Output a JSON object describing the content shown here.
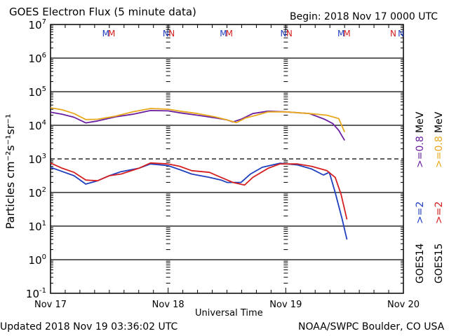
{
  "header": {
    "title": "GOES Electron Flux (5 minute data)",
    "begin": "Begin: 2018 Nov 17 0000 UTC"
  },
  "footer": {
    "updated": "Updated 2018 Nov 19 03:36:02 UTC",
    "credit": "NOAA/SWPC Boulder, CO USA"
  },
  "chart_data": {
    "type": "line",
    "title": "GOES Electron Flux (5 minute data)",
    "xlabel": "Universal Time",
    "ylabel": "Particles cm⁻²s⁻¹sr⁻¹",
    "yscale": "log",
    "ylim_exp": [
      -1,
      7
    ],
    "xlim_days": [
      0,
      3
    ],
    "x_ticks": [
      "Nov 17",
      "Nov 18",
      "Nov 19",
      "Nov 20"
    ],
    "y_ticks": [
      {
        "base": "10",
        "exp": "7"
      },
      {
        "base": "10",
        "exp": "6"
      },
      {
        "base": "10",
        "exp": "5"
      },
      {
        "base": "10",
        "exp": "4"
      },
      {
        "base": "10",
        "exp": "3"
      },
      {
        "base": "10",
        "exp": "2"
      },
      {
        "base": "10",
        "exp": "1"
      },
      {
        "base": "10",
        "exp": "0"
      },
      {
        "base": "10",
        "exp": "-1"
      }
    ],
    "threshold_exp": 3,
    "markers": [
      {
        "day": 0.47,
        "label": "M",
        "color": "#1f3fbf"
      },
      {
        "day": 0.52,
        "label": "M",
        "color": "#d42020"
      },
      {
        "day": 0.98,
        "label": "N",
        "color": "#1f3fbf"
      },
      {
        "day": 1.03,
        "label": "N",
        "color": "#d42020"
      },
      {
        "day": 1.47,
        "label": "M",
        "color": "#1f3fbf"
      },
      {
        "day": 1.52,
        "label": "M",
        "color": "#d42020"
      },
      {
        "day": 1.98,
        "label": "N",
        "color": "#1f3fbf"
      },
      {
        "day": 2.03,
        "label": "N",
        "color": "#d42020"
      },
      {
        "day": 2.47,
        "label": "M",
        "color": "#1f3fbf"
      },
      {
        "day": 2.52,
        "label": "M",
        "color": "#d42020"
      },
      {
        "day": 2.98,
        "label": "N",
        "color": "#1f3fbf"
      },
      {
        "day": 3.03,
        "label": "N",
        "color": "#d42020"
      }
    ],
    "legend": {
      "position": "right",
      "mev_label": "MeV",
      "ge08": ">=0.8",
      "ge2": ">=2",
      "goes14": "GOES14",
      "goes15": "GOES15"
    },
    "series": [
      {
        "name": "GOES14 >=0.8 MeV",
        "color": "#6a1fa0",
        "points": [
          [
            0,
            4.39
          ],
          [
            0.1,
            4.33
          ],
          [
            0.2,
            4.24
          ],
          [
            0.3,
            4.07
          ],
          [
            0.4,
            4.13
          ],
          [
            0.55,
            4.25
          ],
          [
            0.7,
            4.33
          ],
          [
            0.85,
            4.44
          ],
          [
            1.0,
            4.43
          ],
          [
            1.1,
            4.37
          ],
          [
            1.25,
            4.3
          ],
          [
            1.4,
            4.22
          ],
          [
            1.5,
            4.16
          ],
          [
            1.55,
            4.1
          ],
          [
            1.62,
            4.18
          ],
          [
            1.72,
            4.35
          ],
          [
            1.85,
            4.42
          ],
          [
            2.0,
            4.4
          ],
          [
            2.2,
            4.35
          ],
          [
            2.33,
            4.18
          ],
          [
            2.4,
            4.05
          ],
          [
            2.45,
            3.85
          ],
          [
            2.5,
            3.55
          ]
        ]
      },
      {
        "name": "GOES15 >=0.8 MeV",
        "color": "#e8a81c",
        "points": [
          [
            0,
            4.52
          ],
          [
            0.1,
            4.46
          ],
          [
            0.2,
            4.35
          ],
          [
            0.3,
            4.17
          ],
          [
            0.4,
            4.18
          ],
          [
            0.55,
            4.27
          ],
          [
            0.7,
            4.4
          ],
          [
            0.85,
            4.5
          ],
          [
            1.0,
            4.48
          ],
          [
            1.1,
            4.42
          ],
          [
            1.25,
            4.35
          ],
          [
            1.4,
            4.25
          ],
          [
            1.5,
            4.16
          ],
          [
            1.58,
            4.08
          ],
          [
            1.66,
            4.22
          ],
          [
            1.75,
            4.3
          ],
          [
            1.85,
            4.4
          ],
          [
            2.0,
            4.4
          ],
          [
            2.2,
            4.35
          ],
          [
            2.35,
            4.3
          ],
          [
            2.45,
            4.2
          ],
          [
            2.5,
            3.8
          ]
        ]
      },
      {
        "name": "GOES14 >=2 MeV",
        "color": "#1f3fbf",
        "points": [
          [
            0,
            2.75
          ],
          [
            0.08,
            2.65
          ],
          [
            0.2,
            2.5
          ],
          [
            0.3,
            2.25
          ],
          [
            0.4,
            2.35
          ],
          [
            0.5,
            2.5
          ],
          [
            0.6,
            2.62
          ],
          [
            0.75,
            2.72
          ],
          [
            0.85,
            2.85
          ],
          [
            1.0,
            2.8
          ],
          [
            1.1,
            2.68
          ],
          [
            1.2,
            2.55
          ],
          [
            1.35,
            2.45
          ],
          [
            1.45,
            2.37
          ],
          [
            1.5,
            2.3
          ],
          [
            1.62,
            2.3
          ],
          [
            1.7,
            2.55
          ],
          [
            1.8,
            2.75
          ],
          [
            1.95,
            2.87
          ],
          [
            2.1,
            2.82
          ],
          [
            2.22,
            2.7
          ],
          [
            2.32,
            2.52
          ],
          [
            2.37,
            2.6
          ],
          [
            2.42,
            2.0
          ],
          [
            2.48,
            1.2
          ],
          [
            2.52,
            0.6
          ]
        ]
      },
      {
        "name": "GOES15 >=2 MeV",
        "color": "#d42020",
        "points": [
          [
            0,
            2.88
          ],
          [
            0.1,
            2.72
          ],
          [
            0.2,
            2.6
          ],
          [
            0.3,
            2.37
          ],
          [
            0.4,
            2.35
          ],
          [
            0.5,
            2.5
          ],
          [
            0.6,
            2.55
          ],
          [
            0.75,
            2.72
          ],
          [
            0.85,
            2.88
          ],
          [
            1.0,
            2.85
          ],
          [
            1.1,
            2.78
          ],
          [
            1.2,
            2.65
          ],
          [
            1.35,
            2.6
          ],
          [
            1.45,
            2.45
          ],
          [
            1.55,
            2.3
          ],
          [
            1.65,
            2.22
          ],
          [
            1.72,
            2.45
          ],
          [
            1.85,
            2.72
          ],
          [
            1.95,
            2.85
          ],
          [
            2.1,
            2.85
          ],
          [
            2.22,
            2.78
          ],
          [
            2.35,
            2.65
          ],
          [
            2.42,
            2.45
          ],
          [
            2.47,
            1.95
          ],
          [
            2.52,
            1.2
          ]
        ]
      }
    ]
  }
}
